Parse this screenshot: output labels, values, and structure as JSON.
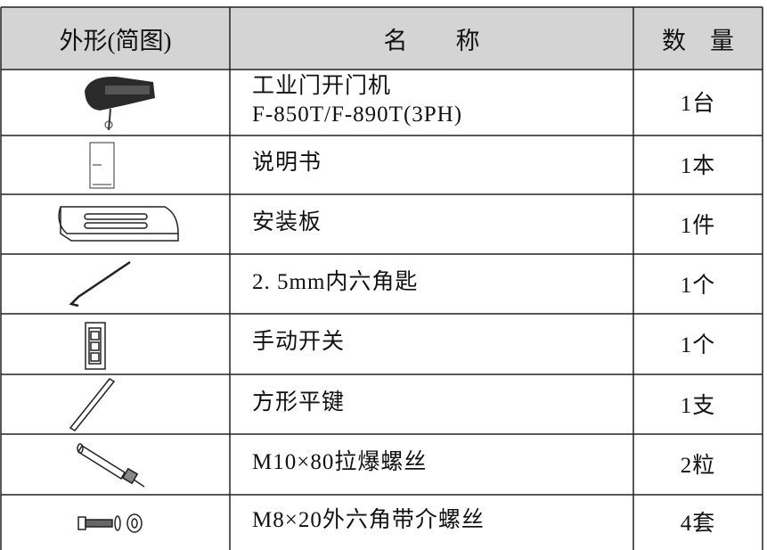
{
  "table": {
    "header": [
      "外形(简图)",
      "名　　称",
      "数　量"
    ],
    "rows": [
      {
        "name": [
          "工业门开门机",
          "F-850T/F-890T(3PH)"
        ],
        "qty": "1台"
      },
      {
        "name": [
          "说明书"
        ],
        "qty": "1本"
      },
      {
        "name": [
          "安装板"
        ],
        "qty": "1件"
      },
      {
        "name": [
          "2. 5mm内六角匙"
        ],
        "qty": "1个"
      },
      {
        "name": [
          "手动开关"
        ],
        "qty": "1个"
      },
      {
        "name": [
          "方形平键"
        ],
        "qty": "1支"
      },
      {
        "name": [
          "M10×80拉爆螺丝"
        ],
        "qty": "2粒"
      },
      {
        "name": [
          "M8×20外六角带介螺丝"
        ],
        "qty": "4套"
      }
    ]
  }
}
